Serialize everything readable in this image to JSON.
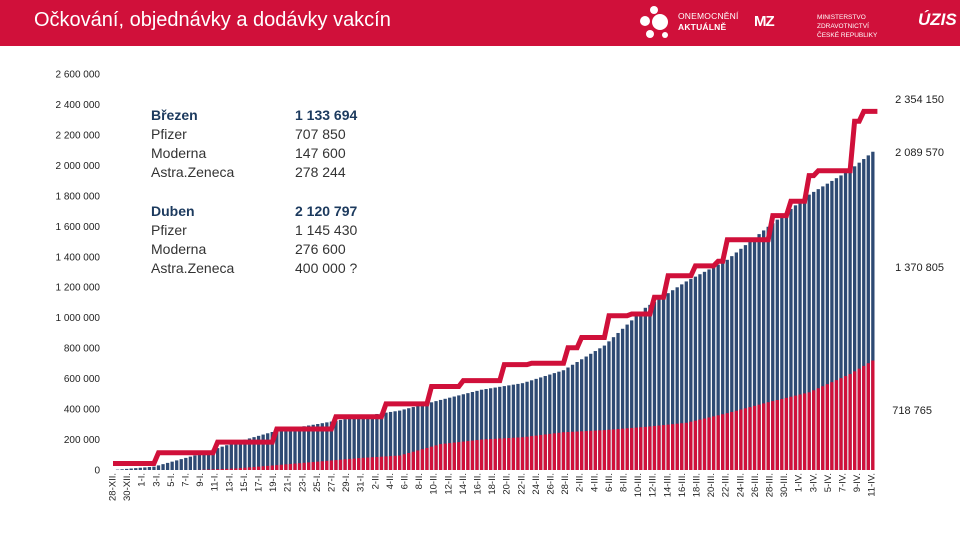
{
  "header": {
    "title": "Očkování, objednávky a dodávky vakcín",
    "logo_onemocneni_line1": "ONEMOCNĚNÍ",
    "logo_onemocneni_line2": "AKTUÁLNĚ",
    "logo_mz_mark": "MZ",
    "logo_mz_line1": "MINISTERSTVO ZDRAVOTNICTVÍ",
    "logo_mz_line2": "ČESKÉ REPUBLIKY",
    "logo_uzis": "ÚZIS"
  },
  "colors": {
    "header_bg": "#d0103a",
    "bar_total": "#2e4a73",
    "bar_part": "#d0103a",
    "line": "#d0103a"
  },
  "info": {
    "brezen": {
      "head_label": "Březen",
      "head_value": "1 133 694",
      "rows": [
        {
          "label": "Pfizer",
          "value": "707 850"
        },
        {
          "label": "Moderna",
          "value": "147 600"
        },
        {
          "label": "Astra.Zeneca",
          "value": "278 244"
        }
      ]
    },
    "duben": {
      "head_label": "Duben",
      "head_value": "2 120 797",
      "rows": [
        {
          "label": "Pfizer",
          "value": "1 145 430"
        },
        {
          "label": "Moderna",
          "value": "276 600"
        },
        {
          "label": "Astra.Zeneca",
          "value": "400 000 ?"
        }
      ]
    }
  },
  "chart_data": {
    "type": "bar",
    "ylim": [
      0,
      2600000
    ],
    "y_ticks": [
      "0",
      "200 000",
      "400 000",
      "600 000",
      "800 000",
      "1 000 000",
      "1 200 000",
      "1 400 000",
      "1 600 000",
      "1 800 000",
      "2 000 000",
      "2 200 000",
      "2 400 000",
      "2 600 000"
    ],
    "x_tick_labels": [
      "28-XII.",
      "30-XII.",
      "1-I.",
      "3-I.",
      "5-I.",
      "7-I.",
      "9-I.",
      "11-I.",
      "13-I.",
      "15-I.",
      "17-I.",
      "19-I.",
      "21-I.",
      "23-I.",
      "25-I.",
      "27-I.",
      "29-I.",
      "31-I.",
      "2-II.",
      "4-II.",
      "6-II.",
      "8-II.",
      "10-II.",
      "12-II.",
      "14-II.",
      "16-II.",
      "18-II.",
      "20-II.",
      "22-II.",
      "24-II.",
      "26-II.",
      "28-II.",
      "2-III.",
      "4-III.",
      "6-III.",
      "8-III.",
      "10-III.",
      "12-III.",
      "14-III.",
      "16-III.",
      "18-III.",
      "20-III.",
      "22-III.",
      "24-III.",
      "26-III.",
      "28-III.",
      "30-III.",
      "1-IV.",
      "3-IV.",
      "5-IV.",
      "7-IV.",
      "9-IV.",
      "11-IV."
    ],
    "bar_total_knots": [
      [
        0,
        0
      ],
      [
        9,
        22000
      ],
      [
        18,
        96000
      ],
      [
        27,
        182000
      ],
      [
        36,
        258000
      ],
      [
        45,
        302000
      ],
      [
        54,
        350000
      ],
      [
        63,
        390000
      ],
      [
        72,
        460000
      ],
      [
        81,
        527000
      ],
      [
        90,
        570000
      ],
      [
        99,
        655000
      ],
      [
        108,
        817000
      ],
      [
        117,
        1065000
      ],
      [
        126,
        1238000
      ],
      [
        135,
        1380000
      ],
      [
        144,
        1597000
      ],
      [
        153,
        1808000
      ],
      [
        162,
        1970000
      ],
      [
        167,
        2089570
      ]
    ],
    "bar_part_knots": [
      [
        0,
        0
      ],
      [
        18,
        0
      ],
      [
        27,
        10000
      ],
      [
        36,
        32000
      ],
      [
        45,
        55000
      ],
      [
        54,
        78000
      ],
      [
        63,
        95000
      ],
      [
        72,
        170000
      ],
      [
        81,
        200000
      ],
      [
        90,
        215000
      ],
      [
        99,
        248000
      ],
      [
        108,
        262000
      ],
      [
        117,
        283000
      ],
      [
        126,
        310000
      ],
      [
        135,
        373000
      ],
      [
        144,
        445000
      ],
      [
        153,
        510000
      ],
      [
        162,
        630000
      ],
      [
        167,
        718765
      ]
    ],
    "delivery_line": [
      [
        0,
        43000
      ],
      [
        9,
        43000
      ],
      [
        10,
        113000
      ],
      [
        22,
        113000
      ],
      [
        23,
        183000
      ],
      [
        35,
        183000
      ],
      [
        36,
        269000
      ],
      [
        48,
        269000
      ],
      [
        49,
        349000
      ],
      [
        59,
        349000
      ],
      [
        60,
        434000
      ],
      [
        69,
        434000
      ],
      [
        70,
        548000
      ],
      [
        76,
        548000
      ],
      [
        77,
        587000
      ],
      [
        85,
        587000
      ],
      [
        86,
        692000
      ],
      [
        91,
        692000
      ],
      [
        92,
        701000
      ],
      [
        99,
        701000
      ],
      [
        100,
        802000
      ],
      [
        102,
        802000
      ],
      [
        103,
        870000
      ],
      [
        108,
        870000
      ],
      [
        109,
        1013000
      ],
      [
        113,
        1013000
      ],
      [
        114,
        1024000
      ],
      [
        118,
        1024000
      ],
      [
        119,
        1134000
      ],
      [
        121,
        1134000
      ],
      [
        122,
        1275000
      ],
      [
        127,
        1275000
      ],
      [
        128,
        1340000
      ],
      [
        132,
        1340000
      ],
      [
        133,
        1370805
      ],
      [
        134,
        1370805
      ],
      [
        135,
        1512000
      ],
      [
        144,
        1512000
      ],
      [
        145,
        1670000
      ],
      [
        148,
        1670000
      ],
      [
        149,
        1765000
      ],
      [
        152,
        1765000
      ],
      [
        153,
        1933000
      ],
      [
        154,
        1933000
      ],
      [
        155,
        1965000
      ],
      [
        162,
        1965000
      ],
      [
        163,
        2290000
      ],
      [
        164,
        2290000
      ],
      [
        165,
        2354150
      ],
      [
        168,
        2354150
      ]
    ],
    "annotations": [
      "2 354 150",
      "2 089 570",
      "1 370 805",
      "718 765"
    ]
  }
}
